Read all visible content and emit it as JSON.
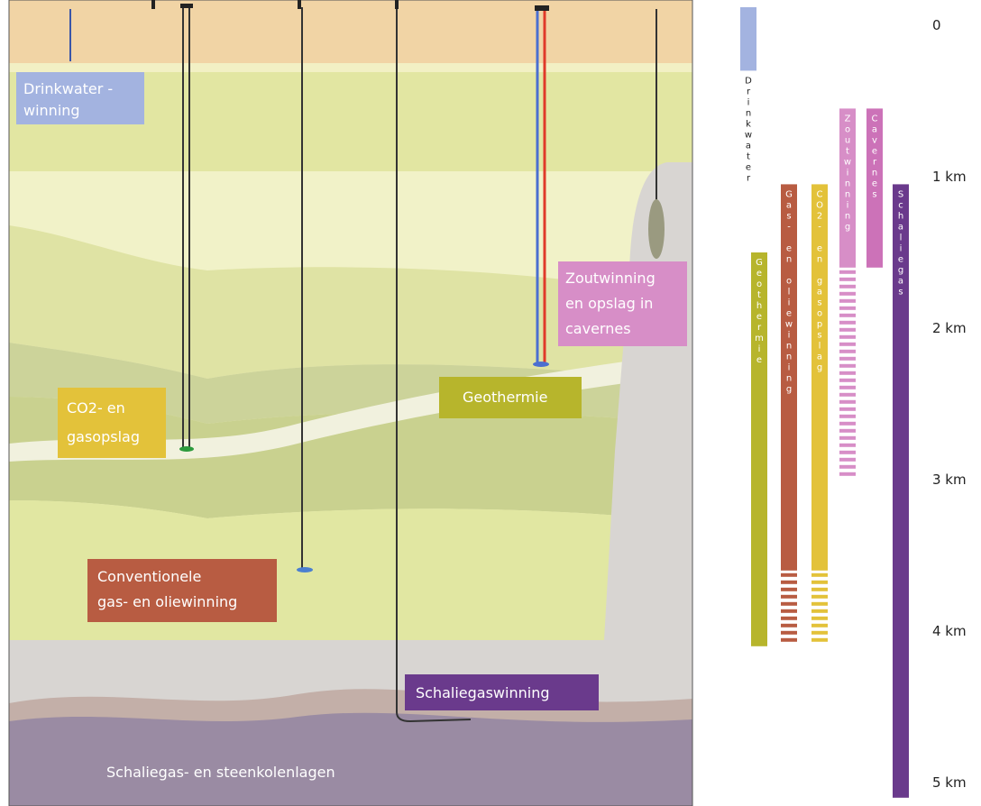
{
  "labels": {
    "drinkwater_1": "Drinkwater -",
    "drinkwater_2": "winning",
    "zout_1": "Zoutwinning",
    "zout_2": "en opslag in",
    "zout_3": "cavernes",
    "geothermie": "Geothermie",
    "co2_1": "CO2- en",
    "co2_2": "gasopslag",
    "conv_1": "Conventionele",
    "conv_2": "gas- en oliewinning",
    "schalie": "Schaliegaswinning",
    "layer": "Schaliegas- en steenkolenlagen"
  },
  "depth_axis": {
    "labels": [
      "0",
      "1 km",
      "2 km",
      "3 km",
      "4 km",
      "5 km"
    ],
    "values": [
      0,
      1,
      2,
      3,
      4,
      5
    ],
    "unit": "km"
  },
  "ranges": [
    {
      "name": "Drinkwater",
      "text": "Drinkwater",
      "color": "#a3b3e0",
      "from": 0,
      "to": 0.3,
      "dashed_to": null,
      "text_color": "dark"
    },
    {
      "name": "Geothermie",
      "text": "Geothermie",
      "color": "#b7b52c",
      "from": 1.5,
      "to": 4.1,
      "dashed_to": null,
      "text_color": "light"
    },
    {
      "name": "Gas- en oliewinning",
      "text": "Gas- en oliewinning",
      "color": "#b85c42",
      "from": 1.05,
      "to": 3.6,
      "dashed_to": 4.1,
      "text_color": "light"
    },
    {
      "name": "CO2- en gasopslag",
      "text": "CO2- en gasopslag",
      "color": "#e3c23a",
      "from": 1.05,
      "to": 3.6,
      "dashed_to": 4.1,
      "text_color": "light"
    },
    {
      "name": "Zoutwinning",
      "text": "Zoutwinning",
      "color": "#d78ec7",
      "from": 0.55,
      "to": 1.6,
      "dashed_to": 3.0,
      "text_color": "light"
    },
    {
      "name": "Cavernes",
      "text": "Cavernes",
      "color": "#cc72b8",
      "from": 0.55,
      "to": 1.6,
      "dashed_to": null,
      "text_color": "light"
    },
    {
      "name": "Schaliegas",
      "text": "Schaliegas",
      "color": "#6a3a8c",
      "from": 1.05,
      "to": 5.1,
      "dashed_to": null,
      "text_color": "light"
    }
  ],
  "colors": {
    "surface": "#f1d4a5",
    "salt_dome": "#d8d5d2",
    "shale": "#9a8ba3"
  }
}
